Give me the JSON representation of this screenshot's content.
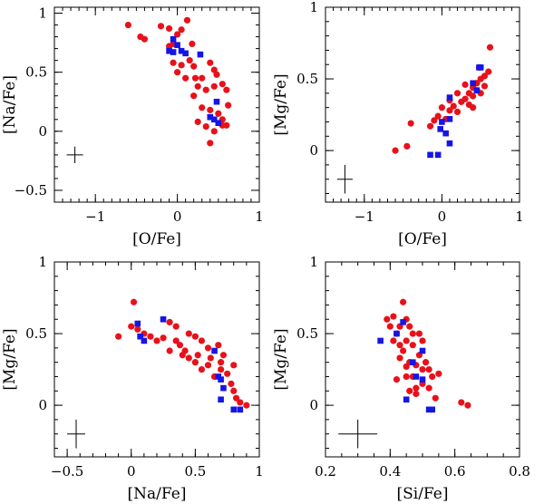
{
  "chart_data": [
    {
      "type": "scatter",
      "xlabel": "[O/Fe]",
      "ylabel": "[Na/Fe]",
      "xlim": [
        -1.5,
        1.0
      ],
      "ylim": [
        -0.6,
        1.05
      ],
      "xticks": [
        {
          "v": -1,
          "label": "−1"
        },
        {
          "v": 0,
          "label": "0"
        },
        {
          "v": 1,
          "label": "1"
        }
      ],
      "yticks": [
        {
          "v": -0.5,
          "label": "−0.5"
        },
        {
          "v": 0,
          "label": "0"
        },
        {
          "v": 0.5,
          "label": "0.5"
        },
        {
          "v": 1,
          "label": "1"
        }
      ],
      "xminor_step": 0.1,
      "yminor_step": 0.1,
      "errorbar": {
        "x": -1.25,
        "y": -0.2,
        "dx": 0.1,
        "dy": 0.07
      },
      "series": [
        {
          "marker": "circle",
          "color": "#e8111a",
          "points": [
            [
              -0.6,
              0.9
            ],
            [
              -0.45,
              0.8
            ],
            [
              -0.4,
              0.78
            ],
            [
              -0.2,
              0.89
            ],
            [
              -0.1,
              0.87
            ],
            [
              0.05,
              0.86
            ],
            [
              0.12,
              0.94
            ],
            [
              0.0,
              0.82
            ],
            [
              -0.05,
              0.74
            ],
            [
              -0.1,
              0.72
            ],
            [
              0.18,
              0.74
            ],
            [
              -0.05,
              0.58
            ],
            [
              0.05,
              0.56
            ],
            [
              0.0,
              0.5
            ],
            [
              0.1,
              0.45
            ],
            [
              0.15,
              0.6
            ],
            [
              0.2,
              0.55
            ],
            [
              0.22,
              0.45
            ],
            [
              0.3,
              0.45
            ],
            [
              0.4,
              0.58
            ],
            [
              0.45,
              0.52
            ],
            [
              0.48,
              0.48
            ],
            [
              0.25,
              0.38
            ],
            [
              0.35,
              0.35
            ],
            [
              0.45,
              0.38
            ],
            [
              0.55,
              0.4
            ],
            [
              0.6,
              0.35
            ],
            [
              0.2,
              0.3
            ],
            [
              0.3,
              0.2
            ],
            [
              0.4,
              0.18
            ],
            [
              0.5,
              0.15
            ],
            [
              0.55,
              0.1
            ],
            [
              0.6,
              0.05
            ],
            [
              0.25,
              0.08
            ],
            [
              0.35,
              0.04
            ],
            [
              0.45,
              0.0
            ],
            [
              0.55,
              0.05
            ],
            [
              0.62,
              0.22
            ],
            [
              0.4,
              -0.1
            ]
          ]
        },
        {
          "marker": "square",
          "color": "#1515e6",
          "points": [
            [
              -0.05,
              0.78
            ],
            [
              0.0,
              0.73
            ],
            [
              -0.1,
              0.68
            ],
            [
              -0.05,
              0.67
            ],
            [
              0.05,
              0.68
            ],
            [
              0.1,
              0.66
            ],
            [
              0.28,
              0.65
            ],
            [
              0.48,
              0.25
            ],
            [
              0.4,
              0.12
            ],
            [
              0.45,
              0.1
            ],
            [
              0.5,
              0.07
            ]
          ]
        }
      ]
    },
    {
      "type": "scatter",
      "xlabel": "[O/Fe]",
      "ylabel": "[Mg/Fe]",
      "xlim": [
        -1.5,
        1.0
      ],
      "ylim": [
        -0.36,
        1.0
      ],
      "xticks": [
        {
          "v": -1,
          "label": "−1"
        },
        {
          "v": 0,
          "label": "0"
        },
        {
          "v": 1,
          "label": "1"
        }
      ],
      "yticks": [
        {
          "v": 0,
          "label": "0"
        },
        {
          "v": 0.5,
          "label": "0.5"
        },
        {
          "v": 1,
          "label": "1"
        }
      ],
      "xminor_step": 0.1,
      "yminor_step": 0.1,
      "errorbar": {
        "x": -1.25,
        "y": -0.2,
        "dx": 0.1,
        "dy": 0.1
      },
      "series": [
        {
          "marker": "circle",
          "color": "#e8111a",
          "points": [
            [
              -0.6,
              0.0
            ],
            [
              -0.45,
              0.03
            ],
            [
              -0.4,
              0.19
            ],
            [
              -0.15,
              0.17
            ],
            [
              -0.1,
              0.21
            ],
            [
              -0.05,
              0.24
            ],
            [
              0.05,
              0.22
            ],
            [
              0.0,
              0.3
            ],
            [
              0.1,
              0.28
            ],
            [
              0.15,
              0.31
            ],
            [
              0.2,
              0.27
            ],
            [
              0.25,
              0.34
            ],
            [
              0.3,
              0.36
            ],
            [
              0.35,
              0.4
            ],
            [
              0.4,
              0.44
            ],
            [
              0.45,
              0.47
            ],
            [
              0.5,
              0.5
            ],
            [
              0.55,
              0.52
            ],
            [
              0.6,
              0.55
            ],
            [
              0.62,
              0.72
            ],
            [
              0.4,
              0.38
            ],
            [
              0.3,
              0.46
            ],
            [
              0.35,
              0.32
            ],
            [
              0.45,
              0.42
            ],
            [
              0.55,
              0.45
            ],
            [
              0.2,
              0.4
            ],
            [
              0.1,
              0.35
            ],
            [
              0.5,
              0.4
            ],
            [
              0.4,
              0.3
            ],
            [
              0.48,
              0.58
            ]
          ]
        },
        {
          "marker": "square",
          "color": "#1515e6",
          "points": [
            [
              -0.15,
              -0.03
            ],
            [
              -0.05,
              -0.03
            ],
            [
              0.1,
              0.05
            ],
            [
              0.0,
              0.2
            ],
            [
              -0.02,
              0.15
            ],
            [
              0.05,
              0.12
            ],
            [
              0.1,
              0.22
            ],
            [
              0.1,
              0.37
            ],
            [
              0.4,
              0.47
            ],
            [
              0.45,
              0.42
            ],
            [
              0.48,
              0.58
            ],
            [
              0.5,
              0.58
            ]
          ]
        }
      ]
    },
    {
      "type": "scatter",
      "xlabel": "[Na/Fe]",
      "ylabel": "[Mg/Fe]",
      "xlim": [
        -0.6,
        1.0
      ],
      "ylim": [
        -0.36,
        1.0
      ],
      "xticks": [
        {
          "v": -0.5,
          "label": "−0.5"
        },
        {
          "v": 0,
          "label": "0"
        },
        {
          "v": 0.5,
          "label": "0.5"
        },
        {
          "v": 1,
          "label": "1"
        }
      ],
      "yticks": [
        {
          "v": 0,
          "label": "0"
        },
        {
          "v": 0.5,
          "label": "0.5"
        },
        {
          "v": 1,
          "label": "1"
        }
      ],
      "xminor_step": 0.1,
      "yminor_step": 0.1,
      "errorbar": {
        "x": -0.43,
        "y": -0.2,
        "dx": 0.07,
        "dy": 0.1
      },
      "series": [
        {
          "marker": "circle",
          "color": "#e8111a",
          "points": [
            [
              -0.1,
              0.48
            ],
            [
              0.0,
              0.55
            ],
            [
              0.02,
              0.72
            ],
            [
              0.05,
              0.53
            ],
            [
              0.1,
              0.5
            ],
            [
              0.15,
              0.48
            ],
            [
              0.2,
              0.45
            ],
            [
              0.25,
              0.47
            ],
            [
              0.3,
              0.38
            ],
            [
              0.35,
              0.45
            ],
            [
              0.38,
              0.42
            ],
            [
              0.4,
              0.35
            ],
            [
              0.42,
              0.38
            ],
            [
              0.45,
              0.33
            ],
            [
              0.5,
              0.3
            ],
            [
              0.52,
              0.35
            ],
            [
              0.55,
              0.25
            ],
            [
              0.6,
              0.28
            ],
            [
              0.62,
              0.33
            ],
            [
              0.65,
              0.2
            ],
            [
              0.7,
              0.25
            ],
            [
              0.75,
              0.22
            ],
            [
              0.78,
              0.15
            ],
            [
              0.8,
              0.1
            ],
            [
              0.82,
              0.05
            ],
            [
              0.85,
              0.02
            ],
            [
              0.9,
              0.0
            ],
            [
              0.35,
              0.55
            ],
            [
              0.45,
              0.5
            ],
            [
              0.55,
              0.45
            ],
            [
              0.6,
              0.4
            ],
            [
              0.68,
              0.42
            ],
            [
              0.72,
              0.35
            ],
            [
              0.5,
              0.48
            ],
            [
              0.3,
              0.58
            ],
            [
              0.7,
              0.3
            ],
            [
              0.8,
              0.28
            ]
          ]
        },
        {
          "marker": "square",
          "color": "#1515e6",
          "points": [
            [
              0.05,
              0.57
            ],
            [
              0.07,
              0.48
            ],
            [
              0.1,
              0.45
            ],
            [
              0.25,
              0.6
            ],
            [
              0.65,
              0.38
            ],
            [
              0.68,
              0.2
            ],
            [
              0.7,
              0.18
            ],
            [
              0.72,
              0.12
            ],
            [
              0.7,
              0.04
            ],
            [
              0.8,
              -0.03
            ],
            [
              0.85,
              -0.03
            ]
          ]
        }
      ]
    },
    {
      "type": "scatter",
      "xlabel": "[Si/Fe]",
      "ylabel": "[Mg/Fe]",
      "xlim": [
        0.2,
        0.8
      ],
      "ylim": [
        -0.36,
        1.0
      ],
      "xticks": [
        {
          "v": 0.2,
          "label": "0.2"
        },
        {
          "v": 0.4,
          "label": "0.4"
        },
        {
          "v": 0.6,
          "label": "0.6"
        },
        {
          "v": 0.8,
          "label": "0.8"
        }
      ],
      "yticks": [
        {
          "v": 0,
          "label": "0"
        },
        {
          "v": 0.5,
          "label": "0.5"
        },
        {
          "v": 1,
          "label": "1"
        }
      ],
      "xminor_step": 0.05,
      "yminor_step": 0.1,
      "errorbar": {
        "x": 0.3,
        "y": -0.2,
        "dx": 0.06,
        "dy": 0.1
      },
      "series": [
        {
          "marker": "circle",
          "color": "#e8111a",
          "points": [
            [
              0.39,
              0.6
            ],
            [
              0.4,
              0.55
            ],
            [
              0.42,
              0.5
            ],
            [
              0.41,
              0.45
            ],
            [
              0.43,
              0.55
            ],
            [
              0.44,
              0.72
            ],
            [
              0.45,
              0.6
            ],
            [
              0.46,
              0.55
            ],
            [
              0.47,
              0.5
            ],
            [
              0.45,
              0.45
            ],
            [
              0.44,
              0.38
            ],
            [
              0.43,
              0.33
            ],
            [
              0.46,
              0.3
            ],
            [
              0.48,
              0.28
            ],
            [
              0.5,
              0.25
            ],
            [
              0.49,
              0.35
            ],
            [
              0.51,
              0.3
            ],
            [
              0.52,
              0.25
            ],
            [
              0.53,
              0.2
            ],
            [
              0.5,
              0.15
            ],
            [
              0.48,
              0.12
            ],
            [
              0.46,
              0.1
            ],
            [
              0.47,
              0.2
            ],
            [
              0.45,
              0.2
            ],
            [
              0.42,
              0.18
            ],
            [
              0.5,
              0.45
            ],
            [
              0.55,
              0.22
            ],
            [
              0.52,
              0.12
            ],
            [
              0.54,
              0.05
            ],
            [
              0.62,
              0.02
            ],
            [
              0.64,
              0.0
            ],
            [
              0.45,
              0.27
            ],
            [
              0.43,
              0.42
            ],
            [
              0.47,
              0.42
            ],
            [
              0.49,
              0.5
            ],
            [
              0.41,
              0.62
            ],
            [
              0.48,
              0.08
            ]
          ]
        },
        {
          "marker": "square",
          "color": "#1515e6",
          "points": [
            [
              0.37,
              0.45
            ],
            [
              0.42,
              0.5
            ],
            [
              0.44,
              0.58
            ],
            [
              0.5,
              0.38
            ],
            [
              0.48,
              0.2
            ],
            [
              0.5,
              0.18
            ],
            [
              0.47,
              0.3
            ],
            [
              0.45,
              0.04
            ],
            [
              0.52,
              -0.03
            ],
            [
              0.53,
              -0.03
            ]
          ]
        }
      ]
    }
  ]
}
